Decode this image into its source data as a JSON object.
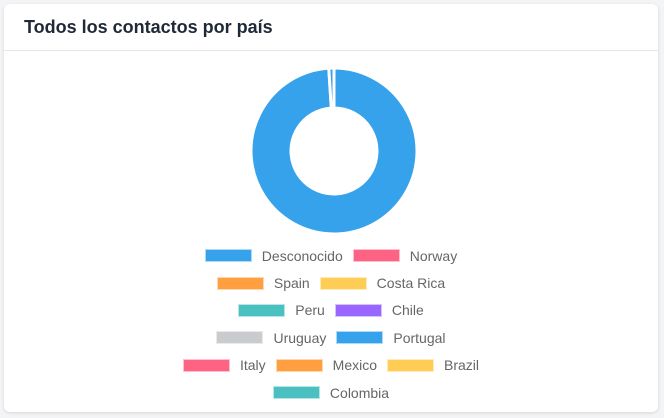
{
  "card": {
    "title": "Todos los contactos por país"
  },
  "chart_data": {
    "type": "pie",
    "variant": "doughnut",
    "title": "Todos los contactos por país",
    "legend_position": "bottom",
    "categories": [
      "Desconocido",
      "Norway",
      "Spain",
      "Costa Rica",
      "Peru",
      "Chile",
      "Uruguay",
      "Portugal",
      "Italy",
      "Mexico",
      "Brazil",
      "Colombia"
    ],
    "values": [
      99,
      0,
      0,
      0,
      0,
      0,
      0,
      1,
      0,
      0,
      0,
      0
    ],
    "colors": [
      "#36a2eb",
      "#ff6384",
      "#ff9f40",
      "#ffcd56",
      "#4bc0c0",
      "#9966ff",
      "#c9cbcf",
      "#36a2eb",
      "#ff6384",
      "#ff9f40",
      "#ffcd56",
      "#4bc0c0"
    ]
  }
}
